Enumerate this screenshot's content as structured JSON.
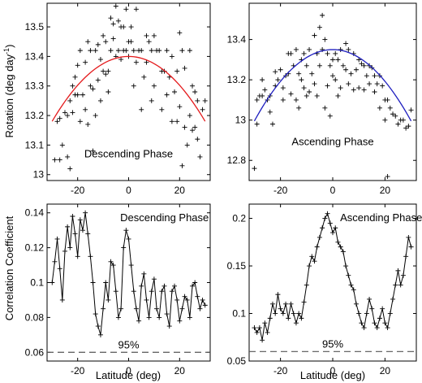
{
  "figure": {
    "ylabel_top": "Rotation (deg day",
    "ylabel_top_sup": "-1",
    "ylabel_top_close": ")",
    "ylabel_bottom": "Correlation Coefficient",
    "xlabel": "Latitude (deg)"
  },
  "chart_data": [
    {
      "type": "scatter",
      "annotation": "Descending Phase",
      "xlim": [
        -32,
        32
      ],
      "ylim": [
        12.98,
        13.58
      ],
      "xticks": [
        -20,
        0,
        20
      ],
      "yticks": [
        13,
        13.1,
        13.2,
        13.3,
        13.4,
        13.5
      ],
      "ytick_labels": [
        "13",
        "13.1",
        "13.2",
        "13.3",
        "13.4",
        "13.5"
      ],
      "marker": "+",
      "fit_color": "#e41a1c",
      "fit": {
        "a": 13.4,
        "b": -0.000244
      },
      "points": [
        [
          -29,
          13.05
        ],
        [
          -28,
          13.18
        ],
        [
          -27,
          13.05
        ],
        [
          -27,
          13.19
        ],
        [
          -26,
          13.1
        ],
        [
          -25,
          13.21
        ],
        [
          -24,
          13.06
        ],
        [
          -24,
          13.2
        ],
        [
          -23,
          13.02
        ],
        [
          -23,
          13.25
        ],
        [
          -22,
          13.21
        ],
        [
          -22,
          13.3
        ],
        [
          -21,
          13.27
        ],
        [
          -21,
          13.33
        ],
        [
          -20,
          13.27
        ],
        [
          -20,
          13.37
        ],
        [
          -19,
          13.18
        ],
        [
          -19,
          13.42
        ],
        [
          -18,
          13.27
        ],
        [
          -17,
          13.22
        ],
        [
          -17,
          13.38
        ],
        [
          -16,
          13.17
        ],
        [
          -16,
          13.45
        ],
        [
          -15,
          13.3
        ],
        [
          -15,
          13.42
        ],
        [
          -14,
          13.08
        ],
        [
          -14,
          13.29
        ],
        [
          -13,
          13.2
        ],
        [
          -13,
          13.42
        ],
        [
          -12,
          13.32
        ],
        [
          -12,
          13.44
        ],
        [
          -11,
          13.25
        ],
        [
          -11,
          13.39
        ],
        [
          -10,
          13.35
        ],
        [
          -10,
          13.47
        ],
        [
          -9,
          13.34
        ],
        [
          -9,
          13.45
        ],
        [
          -8,
          13.28
        ],
        [
          -8,
          13.35
        ],
        [
          -7,
          13.42
        ],
        [
          -7,
          13.53
        ],
        [
          -6,
          13.46
        ],
        [
          -6,
          13.51
        ],
        [
          -5,
          13.57
        ],
        [
          -5,
          13.4
        ],
        [
          -4,
          13.42
        ],
        [
          -4,
          13.52
        ],
        [
          -3,
          13.39
        ],
        [
          -3,
          13.5
        ],
        [
          -2,
          13.42
        ],
        [
          -2,
          13.5
        ],
        [
          -1,
          13.42
        ],
        [
          -1,
          13.56
        ],
        [
          0,
          13.4
        ],
        [
          0,
          13.45
        ],
        [
          1,
          13.45
        ],
        [
          1,
          13.5
        ],
        [
          2,
          13.42
        ],
        [
          2,
          13.3
        ],
        [
          3,
          13.56
        ],
        [
          3,
          13.38
        ],
        [
          4,
          13.42
        ],
        [
          5,
          13.42
        ],
        [
          5,
          13.22
        ],
        [
          6,
          13.33
        ],
        [
          7,
          13.47
        ],
        [
          7,
          13.38
        ],
        [
          8,
          13.45
        ],
        [
          9,
          13.42
        ],
        [
          9,
          13.25
        ],
        [
          10,
          13.3
        ],
        [
          10,
          13.47
        ],
        [
          11,
          13.42
        ],
        [
          12,
          13.42
        ],
        [
          13,
          13.35
        ],
        [
          13,
          13.22
        ],
        [
          14,
          13.35
        ],
        [
          15,
          13.42
        ],
        [
          15,
          13.27
        ],
        [
          16,
          13.33
        ],
        [
          17,
          13.18
        ],
        [
          17,
          13.4
        ],
        [
          18,
          13.28
        ],
        [
          19,
          13.18
        ],
        [
          19,
          13.35
        ],
        [
          20,
          13.23
        ],
        [
          20,
          13.48
        ],
        [
          21,
          13.03
        ],
        [
          21,
          13.42
        ],
        [
          22,
          13.16
        ],
        [
          22,
          13.36
        ],
        [
          23,
          13.1
        ],
        [
          24,
          13.42
        ],
        [
          24,
          13.2
        ],
        [
          25,
          13.15
        ],
        [
          25,
          13.3
        ],
        [
          26,
          13.28
        ],
        [
          26,
          13.16
        ],
        [
          27,
          13.12
        ],
        [
          27,
          13.25
        ],
        [
          28,
          13.06
        ],
        [
          29,
          13.22
        ],
        [
          30,
          13.25
        ]
      ]
    },
    {
      "type": "scatter",
      "annotation": "Ascending Phase",
      "xlim": [
        -32,
        32
      ],
      "ylim": [
        12.7,
        13.58
      ],
      "xticks": [
        -20,
        0,
        20
      ],
      "yticks": [
        12.8,
        13,
        13.2,
        13.4
      ],
      "ytick_labels": [
        "12.8",
        "13",
        "13.2",
        "13.4"
      ],
      "marker": "+",
      "fit_color": "#1f1fbf",
      "fit": {
        "a": 13.35,
        "b": -0.000394
      },
      "points": [
        [
          -30,
          12.76
        ],
        [
          -29,
          12.98
        ],
        [
          -29,
          13.1
        ],
        [
          -28,
          13.12
        ],
        [
          -27,
          13.12
        ],
        [
          -27,
          13.2
        ],
        [
          -26,
          13.15
        ],
        [
          -25,
          13.1
        ],
        [
          -24,
          13.12
        ],
        [
          -24,
          13.04
        ],
        [
          -23,
          12.98
        ],
        [
          -22,
          13.17
        ],
        [
          -22,
          13.24
        ],
        [
          -21,
          13.2
        ],
        [
          -20,
          13.25
        ],
        [
          -19,
          13.16
        ],
        [
          -19,
          13.1
        ],
        [
          -18,
          13.22
        ],
        [
          -17,
          13.23
        ],
        [
          -17,
          13.33
        ],
        [
          -16,
          13.33
        ],
        [
          -16,
          13.13
        ],
        [
          -15,
          13.27
        ],
        [
          -14,
          13.35
        ],
        [
          -14,
          13.1
        ],
        [
          -13,
          13.23
        ],
        [
          -13,
          13.06
        ],
        [
          -12,
          13.2
        ],
        [
          -12,
          13.3
        ],
        [
          -11,
          13.33
        ],
        [
          -11,
          13.16
        ],
        [
          -10,
          13.12
        ],
        [
          -10,
          13.27
        ],
        [
          -9,
          13.35
        ],
        [
          -9,
          13.14
        ],
        [
          -8,
          13.23
        ],
        [
          -7,
          13.42
        ],
        [
          -7,
          13.18
        ],
        [
          -6,
          13.12
        ],
        [
          -6,
          13.33
        ],
        [
          -5,
          13.46
        ],
        [
          -5,
          13.27
        ],
        [
          -4,
          13.52
        ],
        [
          -4,
          13.35
        ],
        [
          -3,
          13.4
        ],
        [
          -3,
          13.06
        ],
        [
          -2,
          13.33
        ],
        [
          -2,
          13.17
        ],
        [
          -1,
          13.02
        ],
        [
          -1,
          13.27
        ],
        [
          0,
          13.3
        ],
        [
          0,
          13.22
        ],
        [
          1,
          13.2
        ],
        [
          1,
          13.33
        ],
        [
          2,
          13.3
        ],
        [
          2,
          13.12
        ],
        [
          3,
          13.35
        ],
        [
          3,
          13.16
        ],
        [
          4,
          13.27
        ],
        [
          5,
          13.25
        ],
        [
          5,
          13.38
        ],
        [
          6,
          13.35
        ],
        [
          6,
          13.18
        ],
        [
          7,
          13.23
        ],
        [
          8,
          13.33
        ],
        [
          8,
          13.15
        ],
        [
          9,
          13.25
        ],
        [
          10,
          13.3
        ],
        [
          10,
          13.16
        ],
        [
          11,
          13.28
        ],
        [
          12,
          13.15
        ],
        [
          12,
          13.27
        ],
        [
          13,
          13.22
        ],
        [
          14,
          13.18
        ],
        [
          14,
          13.27
        ],
        [
          15,
          13.26
        ],
        [
          16,
          13.14
        ],
        [
          16,
          13.22
        ],
        [
          17,
          13.18
        ],
        [
          18,
          13.06
        ],
        [
          18,
          13.22
        ],
        [
          19,
          13.17
        ],
        [
          20,
          13.0
        ],
        [
          20,
          13.1
        ],
        [
          21,
          13.1
        ],
        [
          21,
          12.72
        ],
        [
          22,
          13.06
        ],
        [
          23,
          13.03
        ],
        [
          24,
          13.02
        ],
        [
          25,
          12.98
        ],
        [
          26,
          13.0
        ],
        [
          27,
          13.0
        ],
        [
          28,
          12.96
        ],
        [
          29,
          12.97
        ],
        [
          30,
          13.05
        ]
      ]
    },
    {
      "type": "line",
      "annotation": "Descending Phase",
      "threshold_label": "95%",
      "threshold": 0.06,
      "xlim": [
        -32,
        32
      ],
      "ylim": [
        0.055,
        0.145
      ],
      "xticks": [
        -20,
        0,
        20
      ],
      "yticks": [
        0.06,
        0.08,
        0.1,
        0.12,
        0.14
      ],
      "ytick_labels": [
        "0.06",
        "0.08",
        "0.1",
        "0.12",
        "0.14"
      ],
      "marker": "+",
      "x": [
        -30,
        -29,
        -28,
        -27,
        -26,
        -25,
        -24,
        -23,
        -22,
        -21,
        -20,
        -19,
        -18,
        -17,
        -16,
        -15,
        -14,
        -13,
        -12,
        -11,
        -10,
        -9,
        -8,
        -7,
        -6,
        -5,
        -4,
        -3,
        -2,
        -1,
        0,
        1,
        2,
        3,
        4,
        5,
        6,
        7,
        8,
        9,
        10,
        11,
        12,
        13,
        14,
        15,
        16,
        17,
        18,
        19,
        20,
        21,
        22,
        23,
        24,
        25,
        26,
        27,
        28,
        29,
        30
      ],
      "y": [
        0.1,
        0.112,
        0.125,
        0.108,
        0.09,
        0.118,
        0.132,
        0.12,
        0.138,
        0.128,
        0.115,
        0.136,
        0.13,
        0.14,
        0.128,
        0.115,
        0.1,
        0.082,
        0.075,
        0.07,
        0.085,
        0.1,
        0.09,
        0.112,
        0.11,
        0.095,
        0.08,
        0.085,
        0.12,
        0.13,
        0.125,
        0.11,
        0.095,
        0.085,
        0.078,
        0.098,
        0.105,
        0.09,
        0.08,
        0.095,
        0.102,
        0.085,
        0.08,
        0.095,
        0.098,
        0.082,
        0.075,
        0.095,
        0.098,
        0.09,
        0.078,
        0.085,
        0.092,
        0.09,
        0.08,
        0.098,
        0.1,
        0.092,
        0.085,
        0.09,
        0.087
      ]
    },
    {
      "type": "line",
      "annotation": "Ascending Phase",
      "threshold_label": "95%",
      "threshold": 0.06,
      "xlim": [
        -32,
        32
      ],
      "ylim": [
        0.05,
        0.215
      ],
      "xticks": [
        -20,
        0,
        20
      ],
      "yticks": [
        0.05,
        0.1,
        0.15,
        0.2
      ],
      "ytick_labels": [
        "0.05",
        "0.1",
        "0.15",
        "0.2"
      ],
      "marker": "+",
      "x": [
        -30,
        -29,
        -28,
        -27,
        -26,
        -25,
        -24,
        -23,
        -22,
        -21,
        -20,
        -19,
        -18,
        -17,
        -16,
        -15,
        -14,
        -13,
        -12,
        -11,
        -10,
        -9,
        -8,
        -7,
        -6,
        -5,
        -4,
        -3,
        -2,
        -1,
        0,
        1,
        2,
        3,
        4,
        5,
        6,
        7,
        8,
        9,
        10,
        11,
        12,
        13,
        14,
        15,
        16,
        17,
        18,
        19,
        20,
        21,
        22,
        23,
        24,
        25,
        26,
        27,
        28,
        29,
        30
      ],
      "y": [
        0.085,
        0.08,
        0.085,
        0.072,
        0.09,
        0.08,
        0.095,
        0.11,
        0.1,
        0.12,
        0.105,
        0.1,
        0.11,
        0.095,
        0.11,
        0.1,
        0.09,
        0.1,
        0.095,
        0.112,
        0.13,
        0.15,
        0.16,
        0.155,
        0.17,
        0.18,
        0.19,
        0.2,
        0.205,
        0.195,
        0.185,
        0.19,
        0.175,
        0.17,
        0.165,
        0.15,
        0.14,
        0.13,
        0.125,
        0.11,
        0.1,
        0.09,
        0.085,
        0.1,
        0.115,
        0.105,
        0.09,
        0.085,
        0.095,
        0.105,
        0.09,
        0.085,
        0.1,
        0.115,
        0.13,
        0.145,
        0.13,
        0.14,
        0.16,
        0.18,
        0.17
      ]
    }
  ]
}
